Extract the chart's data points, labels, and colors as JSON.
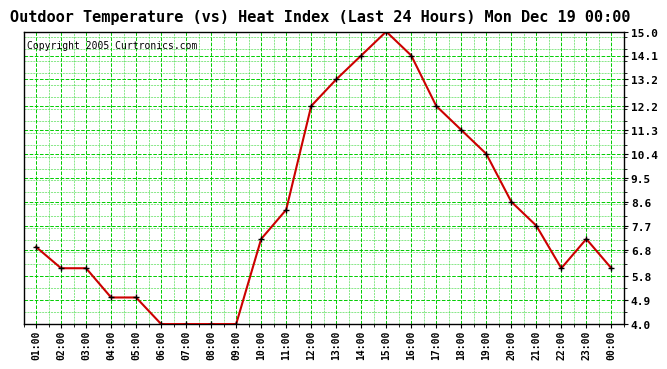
{
  "title": "Outdoor Temperature (vs) Heat Index (Last 24 Hours) Mon Dec 19 00:00",
  "copyright": "Copyright 2005 Curtronics.com",
  "x_labels": [
    "01:00",
    "02:00",
    "03:00",
    "04:00",
    "05:00",
    "06:00",
    "07:00",
    "08:00",
    "09:00",
    "10:00",
    "11:00",
    "12:00",
    "13:00",
    "14:00",
    "15:00",
    "16:00",
    "17:00",
    "18:00",
    "19:00",
    "20:00",
    "21:00",
    "22:00",
    "23:00",
    "00:00"
  ],
  "y_values": [
    6.9,
    6.1,
    6.1,
    5.0,
    5.0,
    4.0,
    4.0,
    4.0,
    4.0,
    7.2,
    8.3,
    12.2,
    13.2,
    14.1,
    15.0,
    14.1,
    12.2,
    11.3,
    10.4,
    8.6,
    7.7,
    6.1,
    7.2,
    6.1
  ],
  "ylim": [
    4.0,
    15.0
  ],
  "yticks": [
    4.0,
    4.9,
    5.8,
    6.8,
    7.7,
    8.6,
    9.5,
    10.4,
    11.3,
    12.2,
    13.2,
    14.1,
    15.0
  ],
  "line_color": "#cc0000",
  "marker_color": "#000000",
  "bg_color": "#ffffff",
  "plot_bg_color": "#ffffff",
  "grid_color": "#00cc00",
  "title_fontsize": 11,
  "copyright_fontsize": 7,
  "tick_fontsize": 8,
  "xtick_fontsize": 7
}
